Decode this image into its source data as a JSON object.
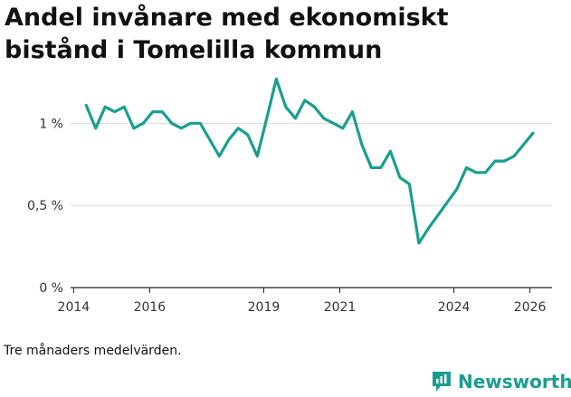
{
  "chart_data": {
    "type": "line",
    "title": "Andel invånare med ekonomiskt bistånd i Tomelilla kommun",
    "title_lines": [
      "Andel invånare med ekonomiskt",
      "bistånd i Tomelilla kommun"
    ],
    "xlabel": "",
    "ylabel": "",
    "x_ticks": [
      2014,
      2016,
      2019,
      2021,
      2024,
      2026
    ],
    "y_ticks": [
      {
        "value": 0,
        "label": "0 %"
      },
      {
        "value": 0.5,
        "label": "0,5 %"
      },
      {
        "value": 1,
        "label": "1 %"
      }
    ],
    "xlim": [
      2013.92,
      2026.58
    ],
    "ylim": [
      0,
      1.2
    ],
    "grid": true,
    "color": "#1a9e8f",
    "series": [
      {
        "name": "Andel invånare med ekonomiskt bistånd",
        "x": [
          2014.33,
          2014.58,
          2014.83,
          2015.08,
          2015.33,
          2015.58,
          2015.83,
          2016.08,
          2016.33,
          2016.58,
          2016.83,
          2017.08,
          2017.33,
          2017.58,
          2017.83,
          2018.08,
          2018.33,
          2018.58,
          2018.83,
          2019.08,
          2019.33,
          2019.58,
          2019.83,
          2020.08,
          2020.33,
          2020.58,
          2020.83,
          2021.08,
          2021.33,
          2021.58,
          2021.83,
          2022.08,
          2022.33,
          2022.58,
          2022.83,
          2023.08,
          2023.33,
          2023.58,
          2023.83,
          2024.08,
          2024.33,
          2024.58,
          2024.83,
          2025.08,
          2025.33,
          2025.58,
          2025.83,
          2026.08
        ],
        "values": [
          1.11,
          0.97,
          1.1,
          1.07,
          1.1,
          0.97,
          1.0,
          1.07,
          1.07,
          1.0,
          0.97,
          1.0,
          1.0,
          0.9,
          0.8,
          0.9,
          0.97,
          0.93,
          0.8,
          1.03,
          1.27,
          1.1,
          1.03,
          1.14,
          1.1,
          1.03,
          1.0,
          0.97,
          1.07,
          0.87,
          0.73,
          0.73,
          0.83,
          0.67,
          0.63,
          0.27,
          0.36,
          0.44,
          0.52,
          0.6,
          0.73,
          0.7,
          0.7,
          0.77,
          0.77,
          0.8,
          0.87,
          0.94
        ]
      }
    ]
  },
  "footnote": "Tre månaders medelvärden.",
  "brand": {
    "name": "Newsworthy",
    "icon": "newsworthy-logo-icon",
    "color": "#1a9e8f"
  }
}
